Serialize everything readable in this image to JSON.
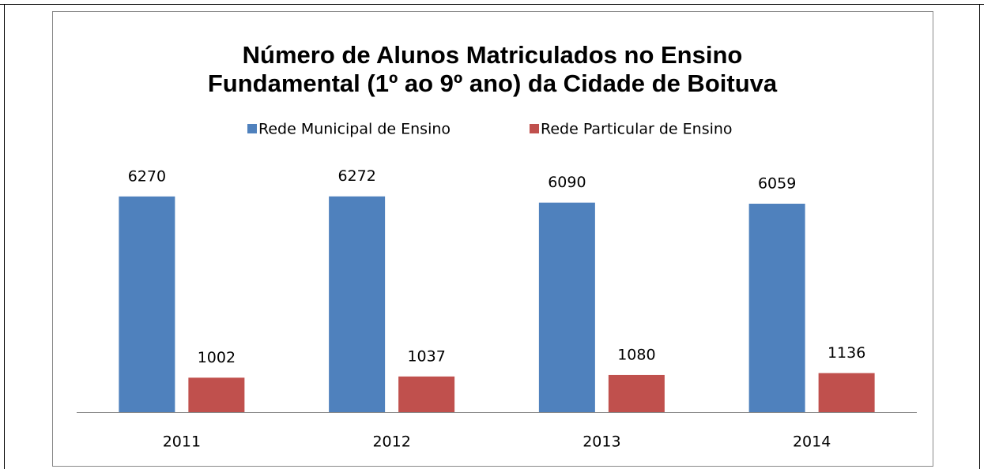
{
  "chart_data": {
    "type": "bar",
    "title": "Número de Alunos Matriculados no Ensino Fundamental (1º ao 9º ano) da Cidade de Boituva",
    "title_lines": [
      "Número de Alunos Matriculados no Ensino",
      "Fundamental (1º ao 9º ano) da Cidade de Boituva"
    ],
    "categories": [
      "2011",
      "2012",
      "2013",
      "2014"
    ],
    "series": [
      {
        "name": "Rede Municipal de Ensino",
        "color": "#4f81bd",
        "values": [
          6270,
          6272,
          6090,
          6059
        ]
      },
      {
        "name": "Rede Particular de Ensino",
        "color": "#c0504d",
        "values": [
          1002,
          1037,
          1080,
          1136
        ]
      }
    ],
    "ylim": [
      0,
      7000
    ],
    "legend": "top"
  }
}
